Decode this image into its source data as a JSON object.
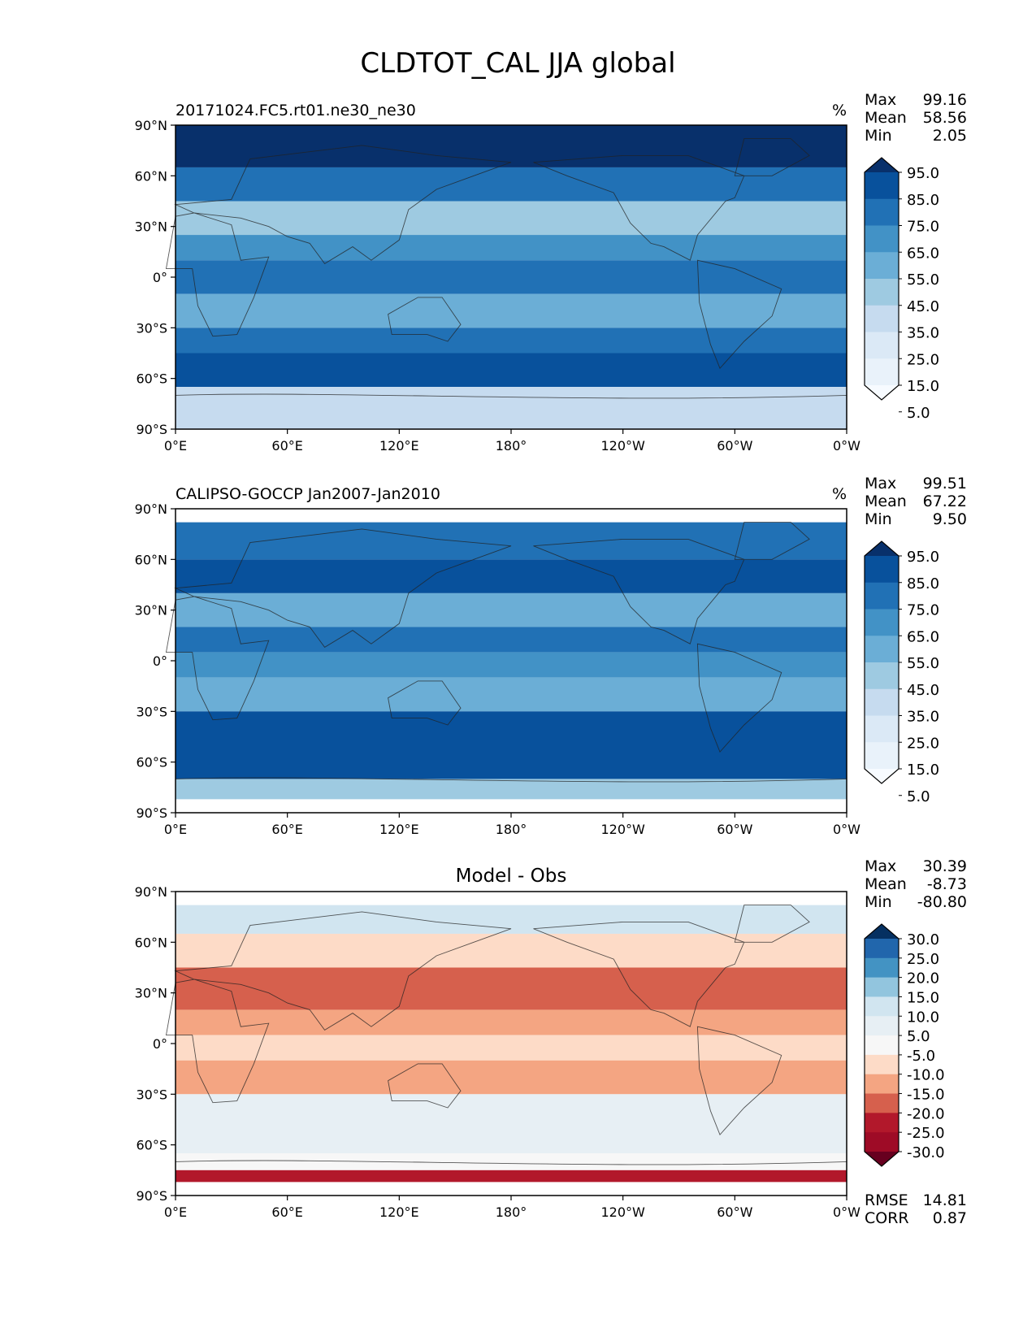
{
  "figure": {
    "title": "CLDTOT_CAL JJA global"
  },
  "chart_data": [
    {
      "type": "heatmap",
      "id": "model",
      "title_left": "20171024.FC5.rt01.ne30_ne30",
      "title_center": "",
      "units": "%",
      "stats": [
        {
          "label": "Max",
          "value": "99.16"
        },
        {
          "label": "Mean",
          "value": "58.56"
        },
        {
          "label": "Min",
          "value": "2.05"
        }
      ],
      "extra_stats": [],
      "xticks": [
        "0°E",
        "60°E",
        "120°E",
        "180°",
        "120°W",
        "60°W",
        "0°W"
      ],
      "yticks": [
        "90°N",
        "60°N",
        "30°N",
        "0°",
        "30°S",
        "60°S",
        "90°S"
      ],
      "xlim": [
        0,
        360
      ],
      "ylim": [
        -90,
        90
      ],
      "colorbar": {
        "labels": [
          "95.0",
          "85.0",
          "75.0",
          "65.0",
          "55.0",
          "45.0",
          "35.0",
          "25.0",
          "15.0",
          "5.0"
        ],
        "colors": [
          "#08306b",
          "#08519c",
          "#2171b5",
          "#4292c6",
          "#6baed6",
          "#9ecae1",
          "#c6dbef",
          "#dbe9f6",
          "#e9f2fa",
          "#f7fbff"
        ]
      },
      "bands": [
        {
          "lat": [
            65,
            90
          ],
          "color": "#08306b"
        },
        {
          "lat": [
            45,
            65
          ],
          "color": "#2171b5"
        },
        {
          "lat": [
            25,
            45
          ],
          "color": "#9ecae1"
        },
        {
          "lat": [
            10,
            25
          ],
          "color": "#4292c6"
        },
        {
          "lat": [
            -10,
            10
          ],
          "color": "#2171b5"
        },
        {
          "lat": [
            -30,
            -10
          ],
          "color": "#6baed6"
        },
        {
          "lat": [
            -45,
            -30
          ],
          "color": "#2171b5"
        },
        {
          "lat": [
            -65,
            -45
          ],
          "color": "#08519c"
        },
        {
          "lat": [
            -90,
            -65
          ],
          "color": "#c6dbef"
        }
      ]
    },
    {
      "type": "heatmap",
      "id": "obs",
      "title_left": "CALIPSO-GOCCP Jan2007-Jan2010",
      "title_center": "",
      "units": "%",
      "stats": [
        {
          "label": "Max",
          "value": "99.51"
        },
        {
          "label": "Mean",
          "value": "67.22"
        },
        {
          "label": "Min",
          "value": "9.50"
        }
      ],
      "extra_stats": [],
      "xticks": [
        "0°E",
        "60°E",
        "120°E",
        "180°",
        "120°W",
        "60°W",
        "0°W"
      ],
      "yticks": [
        "90°N",
        "60°N",
        "30°N",
        "0°",
        "30°S",
        "60°S",
        "90°S"
      ],
      "xlim": [
        0,
        360
      ],
      "ylim": [
        -90,
        90
      ],
      "data_lat_range": [
        -82,
        82
      ],
      "colorbar": {
        "labels": [
          "95.0",
          "85.0",
          "75.0",
          "65.0",
          "55.0",
          "45.0",
          "35.0",
          "25.0",
          "15.0",
          "5.0"
        ],
        "colors": [
          "#08306b",
          "#08519c",
          "#2171b5",
          "#4292c6",
          "#6baed6",
          "#9ecae1",
          "#c6dbef",
          "#dbe9f6",
          "#e9f2fa",
          "#f7fbff"
        ]
      },
      "bands": [
        {
          "lat": [
            60,
            82
          ],
          "color": "#2171b5"
        },
        {
          "lat": [
            40,
            60
          ],
          "color": "#08519c"
        },
        {
          "lat": [
            20,
            40
          ],
          "color": "#6baed6"
        },
        {
          "lat": [
            5,
            20
          ],
          "color": "#2171b5"
        },
        {
          "lat": [
            -10,
            5
          ],
          "color": "#4292c6"
        },
        {
          "lat": [
            -30,
            -10
          ],
          "color": "#6baed6"
        },
        {
          "lat": [
            -70,
            -30
          ],
          "color": "#08519c"
        },
        {
          "lat": [
            -82,
            -70
          ],
          "color": "#9ecae1"
        }
      ]
    },
    {
      "type": "heatmap",
      "id": "diff",
      "title_left": "",
      "title_center": "Model - Obs",
      "units": "",
      "stats": [
        {
          "label": "Max",
          "value": "30.39"
        },
        {
          "label": "Mean",
          "value": "-8.73"
        },
        {
          "label": "Min",
          "value": "-80.80"
        }
      ],
      "extra_stats": [
        {
          "label": "RMSE",
          "value": "14.81"
        },
        {
          "label": "CORR",
          "value": "0.87"
        }
      ],
      "xticks": [
        "0°E",
        "60°E",
        "120°E",
        "180°",
        "120°W",
        "60°W",
        "0°W"
      ],
      "yticks": [
        "90°N",
        "60°N",
        "30°N",
        "0°",
        "30°S",
        "60°S",
        "90°S"
      ],
      "xlim": [
        0,
        360
      ],
      "ylim": [
        -90,
        90
      ],
      "data_lat_range": [
        -82,
        82
      ],
      "colorbar": {
        "labels": [
          "30.0",
          "25.0",
          "20.0",
          "15.0",
          "10.0",
          "5.0",
          "-5.0",
          "-10.0",
          "-15.0",
          "-20.0",
          "-25.0",
          "-30.0"
        ],
        "colors": [
          "#053061",
          "#2166ac",
          "#4393c3",
          "#92c5de",
          "#d1e5f0",
          "#e7eff4",
          "#f7f7f7",
          "#fddbc7",
          "#f4a582",
          "#d6604d",
          "#b2182b",
          "#9e0b26",
          "#67001f"
        ]
      },
      "bands": [
        {
          "lat": [
            65,
            82
          ],
          "color": "#d1e5f0"
        },
        {
          "lat": [
            45,
            65
          ],
          "color": "#fddbc7"
        },
        {
          "lat": [
            20,
            45
          ],
          "color": "#d6604d"
        },
        {
          "lat": [
            5,
            20
          ],
          "color": "#f4a582"
        },
        {
          "lat": [
            -10,
            5
          ],
          "color": "#fddbc7"
        },
        {
          "lat": [
            -30,
            -10
          ],
          "color": "#f4a582"
        },
        {
          "lat": [
            -65,
            -30
          ],
          "color": "#e7eff4"
        },
        {
          "lat": [
            -75,
            -65
          ],
          "color": "#f7f7f7"
        },
        {
          "lat": [
            -82,
            -75
          ],
          "color": "#b2182b"
        }
      ]
    }
  ]
}
